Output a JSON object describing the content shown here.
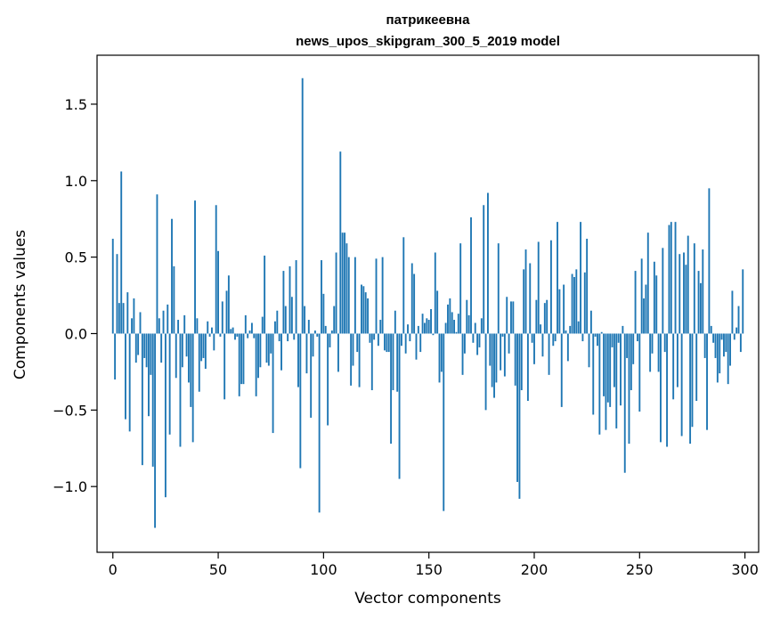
{
  "chart_data": {
    "type": "bar",
    "title": "патрикеевна",
    "subtitle": "news_upos_skipgram_300_5_2019 model",
    "xlabel": "Vector components",
    "ylabel": "Components values",
    "xlim": [
      -7.5,
      306.5
    ],
    "ylim": [
      -1.43,
      1.82
    ],
    "x_ticks": [
      0,
      50,
      100,
      150,
      200,
      250,
      300
    ],
    "y_ticks": [
      -1.0,
      -0.5,
      0.0,
      0.5,
      1.0,
      1.5
    ],
    "y_tick_labels": [
      "−1.0",
      "−0.5",
      "0.0",
      "0.5",
      "1.0",
      "1.5"
    ],
    "bar_color": "#1f77b4",
    "grid": false,
    "values": [
      0.62,
      -0.3,
      0.52,
      0.2,
      1.06,
      0.2,
      -0.56,
      0.27,
      -0.64,
      0.1,
      0.23,
      -0.19,
      -0.14,
      0.14,
      -0.86,
      -0.16,
      -0.22,
      -0.54,
      -0.27,
      -0.87,
      -1.27,
      0.91,
      0.1,
      -0.19,
      0.15,
      -1.07,
      0.19,
      -0.66,
      0.75,
      0.44,
      -0.29,
      0.09,
      -0.74,
      -0.22,
      0.12,
      -0.15,
      -0.32,
      -0.48,
      -0.71,
      0.87,
      0.1,
      -0.38,
      -0.18,
      -0.16,
      -0.23,
      0.08,
      -0.02,
      0.04,
      -0.11,
      0.84,
      0.54,
      -0.02,
      0.21,
      -0.43,
      0.28,
      0.38,
      0.03,
      0.04,
      -0.04,
      -0.02,
      -0.41,
      -0.33,
      -0.33,
      0.12,
      -0.03,
      0.02,
      0.07,
      -0.03,
      -0.41,
      -0.29,
      -0.22,
      0.11,
      0.51,
      -0.19,
      -0.21,
      -0.13,
      -0.65,
      0.08,
      0.15,
      -0.05,
      -0.24,
      0.41,
      0.18,
      -0.05,
      0.44,
      0.24,
      -0.04,
      0.48,
      -0.35,
      -0.88,
      1.67,
      0.18,
      -0.26,
      0.09,
      -0.55,
      -0.15,
      0.02,
      -0.02,
      -1.17,
      0.48,
      0.26,
      0.05,
      -0.6,
      -0.09,
      0.02,
      0.18,
      0.53,
      -0.25,
      1.19,
      0.66,
      0.66,
      0.59,
      0.5,
      -0.34,
      -0.21,
      0.5,
      -0.12,
      -0.35,
      0.32,
      0.31,
      0.27,
      0.23,
      -0.06,
      -0.37,
      -0.04,
      0.49,
      -0.08,
      0.09,
      0.5,
      -0.11,
      -0.12,
      -0.12,
      -0.72,
      -0.37,
      0.15,
      -0.38,
      -0.95,
      -0.08,
      0.63,
      -0.13,
      0.06,
      -0.05,
      0.46,
      0.39,
      -0.17,
      0.05,
      -0.12,
      0.13,
      0.07,
      0.1,
      0.09,
      0.16,
      -0.01,
      0.53,
      0.28,
      -0.32,
      -0.25,
      -1.16,
      0.07,
      0.19,
      0.23,
      0.14,
      0.09,
      0.01,
      0.13,
      0.59,
      -0.27,
      -0.13,
      0.22,
      0.12,
      0.76,
      -0.06,
      0.07,
      -0.14,
      -0.09,
      0.1,
      0.84,
      -0.5,
      0.92,
      -0.21,
      -0.35,
      -0.42,
      -0.32,
      0.59,
      -0.24,
      -0.02,
      -0.28,
      0.24,
      -0.13,
      0.21,
      0.21,
      -0.34,
      -0.97,
      -1.08,
      -0.37,
      0.42,
      0.55,
      -0.44,
      0.46,
      -0.06,
      -0.2,
      0.22,
      0.6,
      0.06,
      -0.15,
      0.2,
      0.22,
      -0.27,
      0.61,
      -0.08,
      -0.05,
      0.73,
      0.29,
      -0.48,
      0.32,
      0.02,
      -0.18,
      0.05,
      0.39,
      0.37,
      0.42,
      0.08,
      0.73,
      -0.05,
      0.4,
      0.62,
      -0.22,
      0.15,
      -0.53,
      -0.02,
      -0.08,
      -0.66,
      0.01,
      -0.41,
      -0.63,
      -0.45,
      -0.48,
      -0.09,
      -0.35,
      -0.62,
      -0.06,
      -0.47,
      0.05,
      -0.91,
      -0.16,
      -0.72,
      -0.37,
      -0.2,
      0.41,
      -0.05,
      -0.51,
      0.49,
      0.23,
      0.32,
      0.66,
      -0.25,
      -0.13,
      0.47,
      0.38,
      -0.25,
      -0.71,
      0.56,
      -0.12,
      -0.74,
      0.71,
      0.73,
      -0.43,
      0.73,
      -0.35,
      0.52,
      -0.67,
      0.53,
      0.45,
      0.64,
      -0.72,
      -0.61,
      0.59,
      -0.44,
      0.41,
      0.33,
      0.55,
      -0.16,
      -0.63,
      0.95,
      0.05,
      -0.06,
      -0.16,
      -0.32,
      -0.26,
      -0.04,
      -0.15,
      -0.12,
      -0.33,
      -0.21,
      0.28,
      -0.04,
      0.04,
      0.18,
      -0.12,
      0.42
    ]
  }
}
